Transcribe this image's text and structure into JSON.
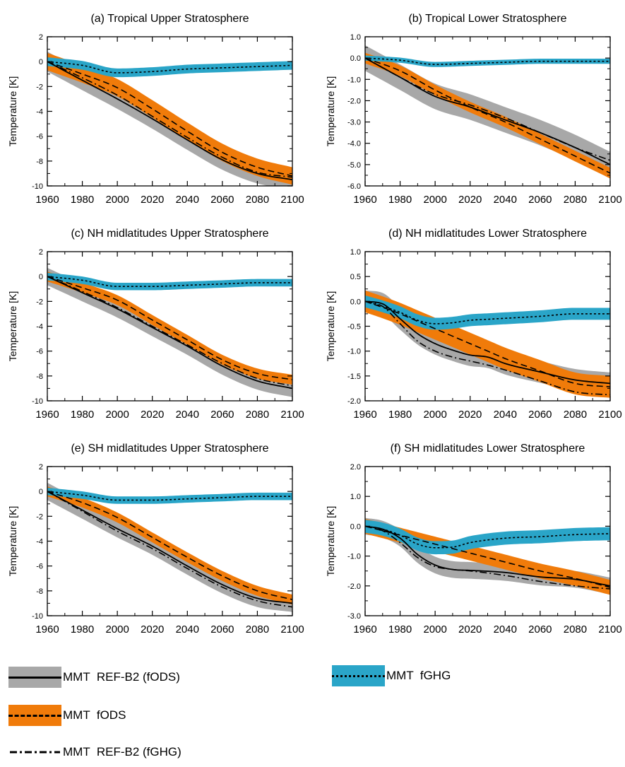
{
  "figure": {
    "y_axis_label": "Temperature [K]",
    "colors": {
      "ref_band": "#a8a8a8",
      "fods_band": "#f07b0a",
      "fghg_band": "#2aa5c8",
      "line": "#000000"
    }
  },
  "legend": {
    "items": [
      {
        "label": "MMT  REF-B2 (fODS)",
        "band": "ref_band",
        "line": "solid"
      },
      {
        "label": "MMT  fGHG",
        "band": "fghg_band",
        "line": "dotted"
      },
      {
        "label": "MMT  fODS",
        "band": "fods_band",
        "line": "dashed"
      },
      {
        "label": "MMT  REF-B2 (fGHG)",
        "band": null,
        "line": "dashdot"
      }
    ]
  },
  "chart_data": [
    {
      "type": "line",
      "title": "(a) Tropical Upper Stratosphere",
      "ylabel": "Temperature [K]",
      "xlim": [
        1960,
        2100
      ],
      "ylim": [
        -10,
        2
      ],
      "xticks": [
        "1960",
        "1980",
        "2000",
        "2020",
        "2040",
        "2060",
        "2080",
        "2100"
      ],
      "yticks": [
        2,
        0,
        -2,
        -4,
        -6,
        -8,
        -10
      ],
      "ytick_labels": [
        "2",
        "0",
        "-2",
        "-4",
        "-6",
        "-8",
        "-10"
      ],
      "x": [
        1960,
        1980,
        2000,
        2020,
        2040,
        2060,
        2080,
        2100
      ],
      "series": [
        {
          "key": "ref_fods",
          "line": "solid",
          "band": "ref_band",
          "band_width": 0.8,
          "values": [
            0,
            -1.5,
            -3.0,
            -4.6,
            -6.3,
            -7.9,
            -9.0,
            -9.5
          ]
        },
        {
          "key": "fods",
          "line": "dashed",
          "band": "fods_band",
          "band_width": 0.7,
          "values": [
            0,
            -1.0,
            -2.1,
            -3.8,
            -5.6,
            -7.3,
            -8.5,
            -9.2
          ]
        },
        {
          "key": "ref_fghg",
          "line": "dashdot",
          "band": null,
          "values": [
            0,
            -1.3,
            -2.7,
            -4.4,
            -6.1,
            -7.7,
            -8.9,
            -9.3
          ]
        },
        {
          "key": "fghg",
          "line": "dotted",
          "band": "fghg_band",
          "band_width": 0.35,
          "values": [
            0,
            -0.3,
            -0.9,
            -0.8,
            -0.6,
            -0.5,
            -0.4,
            -0.3
          ]
        }
      ]
    },
    {
      "type": "line",
      "title": "(b) Tropical Lower Stratosphere",
      "ylabel": "Temperature [K]",
      "xlim": [
        1960,
        2100
      ],
      "ylim": [
        -6,
        1
      ],
      "xticks": [
        "1960",
        "1980",
        "2000",
        "2020",
        "2040",
        "2060",
        "2080",
        "2100"
      ],
      "yticks": [
        1,
        0,
        -1,
        -2,
        -3,
        -4,
        -5,
        -6
      ],
      "ytick_labels": [
        "1.0",
        "0.0",
        "-1.0",
        "-2.0",
        "-3.0",
        "-4.0",
        "-5.0",
        "-6.0"
      ],
      "x": [
        1960,
        1980,
        2000,
        2020,
        2040,
        2060,
        2080,
        2100
      ],
      "series": [
        {
          "key": "ref_fods",
          "line": "solid",
          "band": "ref_band",
          "band_width": 0.6,
          "values": [
            0,
            -0.9,
            -1.8,
            -2.3,
            -2.9,
            -3.5,
            -4.2,
            -5.0
          ]
        },
        {
          "key": "fods",
          "line": "dashed",
          "band": "fods_band",
          "band_width": 0.25,
          "values": [
            0,
            -0.6,
            -1.5,
            -2.3,
            -3.0,
            -3.8,
            -4.6,
            -5.4
          ]
        },
        {
          "key": "ref_fghg",
          "line": "dashdot",
          "band": null,
          "values": [
            0,
            -0.9,
            -1.7,
            -2.2,
            -2.8,
            -3.5,
            -4.2,
            -4.8
          ]
        },
        {
          "key": "fghg",
          "line": "dotted",
          "band": "fghg_band",
          "band_width": 0.12,
          "values": [
            0,
            -0.1,
            -0.3,
            -0.25,
            -0.2,
            -0.15,
            -0.15,
            -0.15
          ]
        }
      ]
    },
    {
      "type": "line",
      "title": "(c) NH midlatitudes Upper Stratosphere",
      "ylabel": "Temperature [K]",
      "xlim": [
        1960,
        2100
      ],
      "ylim": [
        -10,
        2
      ],
      "xticks": [
        "1960",
        "1980",
        "2000",
        "2020",
        "2040",
        "2060",
        "2080",
        "2100"
      ],
      "yticks": [
        2,
        0,
        -2,
        -4,
        -6,
        -8,
        -10
      ],
      "ytick_labels": [
        "2",
        "0",
        "-2",
        "-4",
        "-6",
        "-8",
        "-10"
      ],
      "x": [
        1960,
        1980,
        2000,
        2020,
        2040,
        2060,
        2080,
        2100
      ],
      "series": [
        {
          "key": "ref_fods",
          "line": "solid",
          "band": "ref_band",
          "band_width": 0.7,
          "values": [
            0,
            -1.3,
            -2.6,
            -4.1,
            -5.6,
            -7.2,
            -8.4,
            -9.0
          ]
        },
        {
          "key": "fods",
          "line": "dashed",
          "band": "fods_band",
          "band_width": 0.4,
          "values": [
            0,
            -0.9,
            -1.9,
            -3.5,
            -5.1,
            -6.7,
            -7.8,
            -8.3
          ]
        },
        {
          "key": "ref_fghg",
          "line": "dashdot",
          "band": null,
          "values": [
            0,
            -1.2,
            -2.5,
            -4.0,
            -5.5,
            -7.0,
            -8.2,
            -8.8
          ]
        },
        {
          "key": "fghg",
          "line": "dotted",
          "band": "fghg_band",
          "band_width": 0.3,
          "values": [
            0,
            -0.3,
            -0.8,
            -0.8,
            -0.7,
            -0.6,
            -0.5,
            -0.5
          ]
        }
      ]
    },
    {
      "type": "line",
      "title": "(d) NH midlatitudes Lower Stratosphere",
      "ylabel": "Temperature [K]",
      "xlim": [
        1960,
        2100
      ],
      "ylim": [
        -2,
        1
      ],
      "xticks": [
        "1960",
        "1980",
        "2000",
        "2020",
        "2040",
        "2060",
        "2080",
        "2100"
      ],
      "yticks": [
        1,
        0.5,
        0,
        -0.5,
        -1,
        -1.5,
        -2
      ],
      "ytick_labels": [
        "1.0",
        "0.5",
        "0.0",
        "-0.5",
        "-1.0",
        "-1.5",
        "-2.0"
      ],
      "x": [
        1960,
        1970,
        1980,
        1990,
        2000,
        2010,
        2020,
        2030,
        2040,
        2060,
        2080,
        2100
      ],
      "series": [
        {
          "key": "ref_fods",
          "line": "solid",
          "band": "ref_band",
          "band_width": 0.22,
          "values": [
            0,
            -0.05,
            -0.35,
            -0.65,
            -0.85,
            -0.98,
            -1.08,
            -1.12,
            -1.25,
            -1.42,
            -1.58,
            -1.65
          ]
        },
        {
          "key": "fods",
          "line": "dashed",
          "band": "fods_band",
          "band_width": 0.22,
          "values": [
            0,
            -0.12,
            -0.25,
            -0.4,
            -0.55,
            -0.7,
            -0.85,
            -1.0,
            -1.15,
            -1.4,
            -1.65,
            -1.72
          ]
        },
        {
          "key": "ref_fghg",
          "line": "dashdot",
          "band": null,
          "values": [
            0,
            -0.1,
            -0.45,
            -0.8,
            -1.0,
            -1.12,
            -1.2,
            -1.28,
            -1.38,
            -1.6,
            -1.82,
            -1.88
          ]
        },
        {
          "key": "fghg",
          "line": "dotted",
          "band": "fghg_band",
          "band_width": 0.12,
          "values": [
            0,
            -0.1,
            -0.22,
            -0.38,
            -0.45,
            -0.43,
            -0.38,
            -0.36,
            -0.34,
            -0.3,
            -0.25,
            -0.25
          ]
        }
      ]
    },
    {
      "type": "line",
      "title": "(e) SH midlatitudes Upper Stratosphere",
      "ylabel": "Temperature [K]",
      "xlim": [
        1960,
        2100
      ],
      "ylim": [
        -10,
        2
      ],
      "xticks": [
        "1960",
        "1980",
        "2000",
        "2020",
        "2040",
        "2060",
        "2080",
        "2100"
      ],
      "yticks": [
        2,
        0,
        -2,
        -4,
        -6,
        -8,
        -10
      ],
      "ytick_labels": [
        "2",
        "0",
        "-2",
        "-4",
        "-6",
        "-8",
        "-10"
      ],
      "x": [
        1960,
        1980,
        2000,
        2020,
        2040,
        2060,
        2080,
        2100
      ],
      "series": [
        {
          "key": "ref_fods",
          "line": "solid",
          "band": "ref_band",
          "band_width": 0.7,
          "values": [
            0,
            -1.5,
            -3.0,
            -4.4,
            -6.0,
            -7.5,
            -8.6,
            -9.0
          ]
        },
        {
          "key": "fods",
          "line": "dashed",
          "band": "fods_band",
          "band_width": 0.4,
          "values": [
            0,
            -0.9,
            -2.1,
            -3.7,
            -5.3,
            -6.8,
            -8.0,
            -8.7
          ]
        },
        {
          "key": "ref_fghg",
          "line": "dashdot",
          "band": null,
          "values": [
            0,
            -1.6,
            -3.2,
            -4.6,
            -6.2,
            -7.7,
            -8.8,
            -9.3
          ]
        },
        {
          "key": "fghg",
          "line": "dotted",
          "band": "fghg_band",
          "band_width": 0.3,
          "values": [
            0,
            -0.3,
            -0.7,
            -0.7,
            -0.6,
            -0.5,
            -0.4,
            -0.4
          ]
        }
      ]
    },
    {
      "type": "line",
      "title": "(f) SH midlatitudes Lower Stratosphere",
      "ylabel": "Temperature [K]",
      "xlim": [
        1960,
        2100
      ],
      "ylim": [
        -3,
        2
      ],
      "xticks": [
        "1960",
        "1980",
        "2000",
        "2020",
        "2040",
        "2060",
        "2080",
        "2100"
      ],
      "yticks": [
        2,
        1,
        0,
        -1,
        -2,
        -3
      ],
      "ytick_labels": [
        "2.0",
        "1.0",
        "0.0",
        "-1.0",
        "-2.0",
        "-3.0"
      ],
      "x": [
        1960,
        1970,
        1980,
        1990,
        2000,
        2010,
        2020,
        2040,
        2060,
        2080,
        2100
      ],
      "series": [
        {
          "key": "ref_fods",
          "line": "solid",
          "band": "ref_band",
          "band_width": 0.28,
          "values": [
            0,
            -0.1,
            -0.4,
            -0.95,
            -1.3,
            -1.45,
            -1.48,
            -1.55,
            -1.7,
            -1.78,
            -2.0
          ]
        },
        {
          "key": "fods",
          "line": "dashed",
          "band": "fods_band",
          "band_width": 0.25,
          "values": [
            0,
            -0.15,
            -0.3,
            -0.45,
            -0.6,
            -0.75,
            -0.9,
            -1.2,
            -1.5,
            -1.75,
            -2.05
          ]
        },
        {
          "key": "ref_fghg",
          "line": "dashdot",
          "band": null,
          "values": [
            0,
            -0.15,
            -0.55,
            -1.05,
            -1.35,
            -1.45,
            -1.5,
            -1.65,
            -1.85,
            -2.0,
            -2.1
          ]
        },
        {
          "key": "fghg",
          "line": "dotted",
          "band": "fghg_band",
          "band_width": 0.22,
          "values": [
            0,
            -0.1,
            -0.3,
            -0.6,
            -0.72,
            -0.7,
            -0.55,
            -0.4,
            -0.35,
            -0.28,
            -0.25
          ]
        }
      ]
    }
  ]
}
